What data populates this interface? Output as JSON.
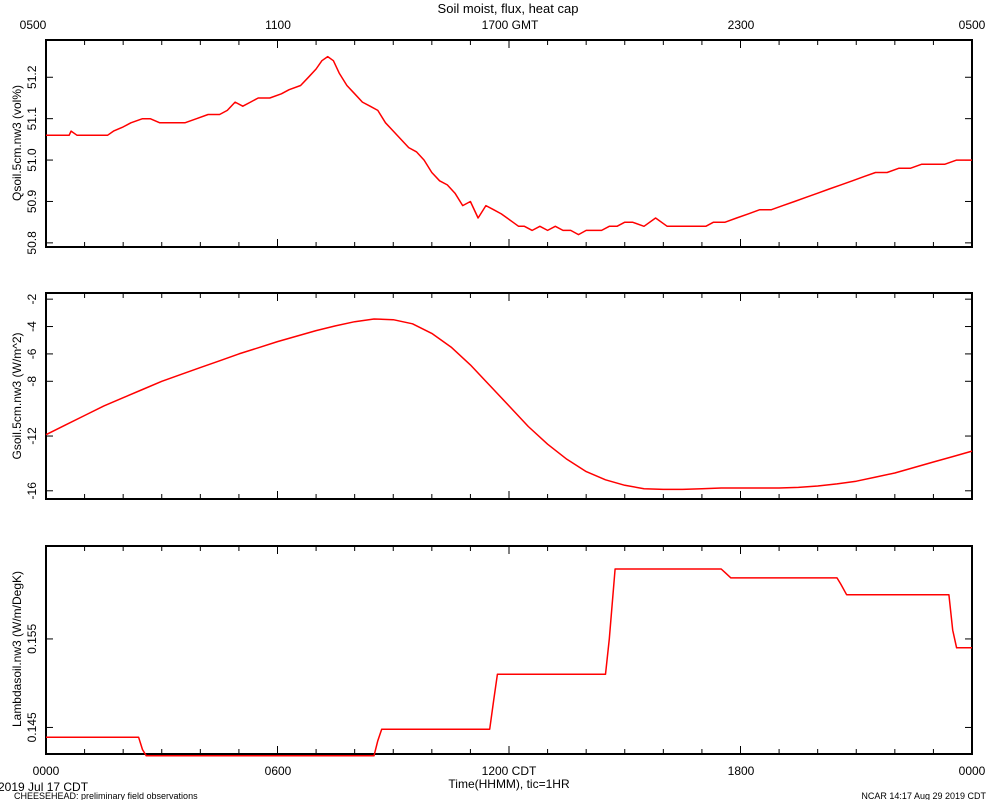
{
  "chart_data": {
    "title": "Soil moist, flux, heat cap",
    "top_axis": {
      "tick_labels": [
        "0500",
        "1100",
        "1700 GMT",
        "2300",
        "0500"
      ]
    },
    "bottom_axis": {
      "tick_labels": [
        "0000",
        "0600",
        "1200 CDT",
        "1800",
        "0000"
      ],
      "xlabel": "Time(HHMM), tic=1HR",
      "hours_range": [
        0,
        24
      ]
    },
    "footer": {
      "date": "2019 Jul 17 CDT",
      "left_note": "CHEESEHEAD: preliminary field observations",
      "right_note": "NCAR 14:17 Aug 29 2019 CDT"
    },
    "line_color": "#ff0000",
    "panels": [
      {
        "type": "line",
        "name": "moisture",
        "ylabel": "Qsoil.5cm.nw3 (vol%)",
        "ylim": [
          50.79,
          51.29
        ],
        "yticks": [
          50.8,
          50.9,
          51.0,
          51.1,
          51.2
        ],
        "ytick_labels": [
          "50.8",
          "50.9",
          "51.0",
          "51.1",
          "51.2"
        ],
        "x": [
          0,
          0.6,
          0.65,
          0.8,
          1.6,
          1.75,
          2.0,
          2.2,
          2.5,
          2.7,
          2.95,
          3.3,
          3.6,
          3.9,
          4.2,
          4.5,
          4.7,
          4.9,
          5.1,
          5.3,
          5.5,
          5.8,
          6.1,
          6.3,
          6.6,
          6.8,
          7.0,
          7.15,
          7.3,
          7.45,
          7.6,
          7.8,
          8.0,
          8.2,
          8.4,
          8.6,
          8.8,
          9.0,
          9.2,
          9.4,
          9.6,
          9.8,
          10.0,
          10.2,
          10.4,
          10.6,
          10.8,
          11.0,
          11.2,
          11.4,
          11.6,
          11.8,
          11.95,
          12.1,
          12.25,
          12.4,
          12.6,
          12.8,
          13.0,
          13.2,
          13.4,
          13.6,
          13.8,
          14.0,
          14.2,
          14.4,
          14.6,
          14.8,
          15.0,
          15.2,
          15.5,
          15.8,
          16.1,
          16.4,
          16.6,
          16.8,
          16.95,
          17.1,
          17.3,
          17.6,
          17.9,
          18.2,
          18.5,
          18.8,
          19.1,
          19.4,
          19.7,
          20.0,
          20.3,
          20.6,
          20.9,
          21.2,
          21.5,
          21.8,
          22.1,
          22.4,
          22.7,
          23.0,
          23.3,
          23.6,
          24.0
        ],
        "y": [
          51.06,
          51.06,
          51.07,
          51.06,
          51.06,
          51.07,
          51.08,
          51.09,
          51.1,
          51.1,
          51.09,
          51.09,
          51.09,
          51.1,
          51.11,
          51.11,
          51.12,
          51.14,
          51.13,
          51.14,
          51.15,
          51.15,
          51.16,
          51.17,
          51.18,
          51.2,
          51.22,
          51.24,
          51.25,
          51.24,
          51.21,
          51.18,
          51.16,
          51.14,
          51.13,
          51.12,
          51.09,
          51.07,
          51.05,
          51.03,
          51.02,
          51.0,
          50.97,
          50.95,
          50.94,
          50.92,
          50.89,
          50.9,
          50.86,
          50.89,
          50.88,
          50.87,
          50.86,
          50.85,
          50.84,
          50.84,
          50.83,
          50.84,
          50.83,
          50.84,
          50.83,
          50.83,
          50.82,
          50.83,
          50.83,
          50.83,
          50.84,
          50.84,
          50.85,
          50.85,
          50.84,
          50.86,
          50.84,
          50.84,
          50.84,
          50.84,
          50.84,
          50.84,
          50.85,
          50.85,
          50.86,
          50.87,
          50.88,
          50.88,
          50.89,
          50.9,
          50.91,
          50.92,
          50.93,
          50.94,
          50.95,
          50.96,
          50.97,
          50.97,
          50.98,
          50.98,
          50.99,
          50.99,
          50.99,
          51.0,
          51.0
        ]
      },
      {
        "type": "line",
        "name": "flux",
        "ylabel": "Gsoil.5cm.nw3 (W/m^2)",
        "ylim": [
          -16.6,
          -1.55
        ],
        "yticks": [
          -16,
          -12,
          -8,
          -6,
          -4,
          -2
        ],
        "ytick_labels": [
          "-16",
          "-12",
          "-8",
          "-6",
          "-4",
          "-2"
        ],
        "x": [
          0,
          0.5,
          1,
          1.5,
          2,
          2.5,
          3,
          3.5,
          4,
          4.5,
          5,
          5.5,
          6,
          6.5,
          7,
          7.5,
          8,
          8.5,
          9,
          9.5,
          10,
          10.5,
          11,
          11.5,
          12,
          12.5,
          13,
          13.5,
          14,
          14.5,
          15,
          15.5,
          16,
          16.5,
          17,
          17.5,
          18,
          18.5,
          19,
          19.5,
          20,
          20.5,
          21,
          21.5,
          22,
          22.5,
          23,
          23.5,
          24
        ],
        "y": [
          -11.9,
          -11.2,
          -10.5,
          -9.8,
          -9.2,
          -8.6,
          -8.0,
          -7.5,
          -7.0,
          -6.5,
          -6.0,
          -5.55,
          -5.1,
          -4.7,
          -4.3,
          -3.95,
          -3.65,
          -3.45,
          -3.5,
          -3.8,
          -4.5,
          -5.5,
          -6.8,
          -8.3,
          -9.8,
          -11.3,
          -12.6,
          -13.7,
          -14.6,
          -15.2,
          -15.6,
          -15.85,
          -15.9,
          -15.9,
          -15.85,
          -15.8,
          -15.8,
          -15.8,
          -15.8,
          -15.75,
          -15.65,
          -15.5,
          -15.3,
          -15.0,
          -14.7,
          -14.3,
          -13.9,
          -13.5,
          -13.1
        ]
      },
      {
        "type": "line",
        "name": "heat-capacity",
        "ylabel": "Lambdasoil.nw3 (W/m/DegK)",
        "ylim": [
          0.142,
          0.1655
        ],
        "yticks": [
          0.145,
          0.155
        ],
        "ytick_labels": [
          "0.145",
          "0.155"
        ],
        "x": [
          0,
          2.4,
          2.5,
          2.6,
          3.5,
          8.5,
          8.6,
          8.7,
          9.0,
          11.5,
          11.6,
          11.7,
          12.0,
          14.5,
          14.6,
          14.75,
          15.0,
          17.5,
          17.6,
          17.75,
          18.5,
          20.5,
          20.6,
          20.75,
          21.5,
          23.4,
          23.5,
          23.6,
          24.0
        ],
        "y": [
          0.1439,
          0.1439,
          0.1425,
          0.1418,
          0.1418,
          0.1418,
          0.1435,
          0.1448,
          0.1448,
          0.1448,
          0.148,
          0.151,
          0.151,
          0.151,
          0.155,
          0.1629,
          0.1629,
          0.1629,
          0.1625,
          0.1619,
          0.1619,
          0.1619,
          0.1612,
          0.16,
          0.16,
          0.16,
          0.156,
          0.154,
          0.154
        ]
      }
    ]
  }
}
